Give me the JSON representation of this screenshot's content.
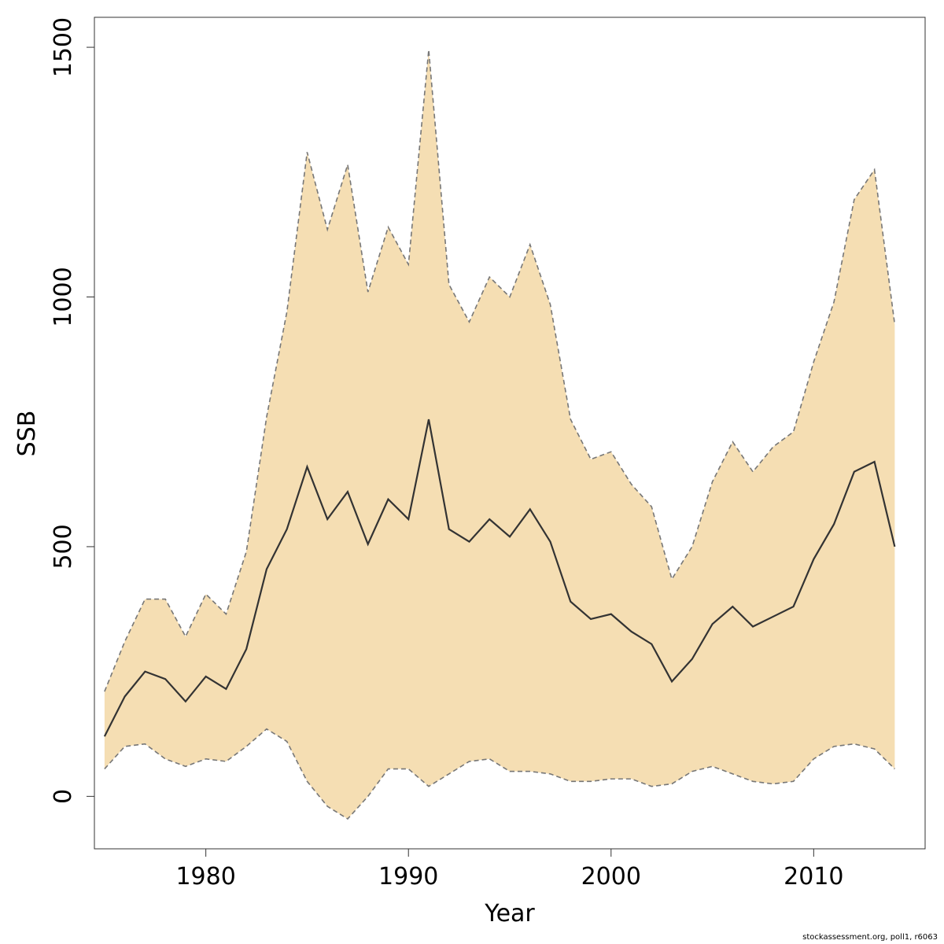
{
  "chart_data": {
    "type": "area",
    "xlabel": "Year",
    "ylabel": "SSB",
    "xlim": [
      1974.5,
      2015.5
    ],
    "ylim": [
      -105,
      1560
    ],
    "xticks": [
      1980,
      1990,
      2000,
      2010
    ],
    "yticks": [
      0,
      500,
      1000,
      1500
    ],
    "grid": false,
    "band_color": "#f5deb3",
    "line_color": "#333333",
    "bound_color": "#777777",
    "x": [
      1975,
      1976,
      1977,
      1978,
      1979,
      1980,
      1981,
      1982,
      1983,
      1984,
      1985,
      1986,
      1987,
      1988,
      1989,
      1990,
      1991,
      1992,
      1993,
      1994,
      1995,
      1996,
      1997,
      1998,
      1999,
      2000,
      2001,
      2002,
      2003,
      2004,
      2005,
      2006,
      2007,
      2008,
      2009,
      2010,
      2011,
      2012,
      2013,
      2014
    ],
    "series": [
      {
        "role": "estimate",
        "values": [
          120,
          200,
          250,
          235,
          190,
          240,
          215,
          295,
          455,
          535,
          660,
          555,
          610,
          505,
          595,
          555,
          755,
          535,
          510,
          555,
          520,
          575,
          510,
          390,
          355,
          365,
          330,
          305,
          230,
          275,
          345,
          380,
          340,
          360,
          380,
          475,
          545,
          650,
          670,
          500
        ]
      },
      {
        "role": "upper",
        "values": [
          210,
          310,
          395,
          395,
          320,
          405,
          365,
          490,
          760,
          970,
          1290,
          1135,
          1265,
          1010,
          1140,
          1065,
          1495,
          1025,
          950,
          1040,
          1000,
          1105,
          985,
          755,
          675,
          690,
          625,
          580,
          435,
          500,
          630,
          710,
          650,
          700,
          730,
          870,
          990,
          1195,
          1255,
          945
        ]
      },
      {
        "role": "lower",
        "values": [
          55,
          100,
          105,
          75,
          60,
          75,
          70,
          100,
          135,
          110,
          30,
          -20,
          -45,
          0,
          55,
          55,
          20,
          45,
          70,
          75,
          50,
          50,
          45,
          30,
          30,
          35,
          35,
          20,
          25,
          50,
          60,
          45,
          30,
          25,
          30,
          75,
          100,
          105,
          95,
          55
        ]
      }
    ]
  },
  "footnote": "stockassessment.org, poll1, r6063"
}
